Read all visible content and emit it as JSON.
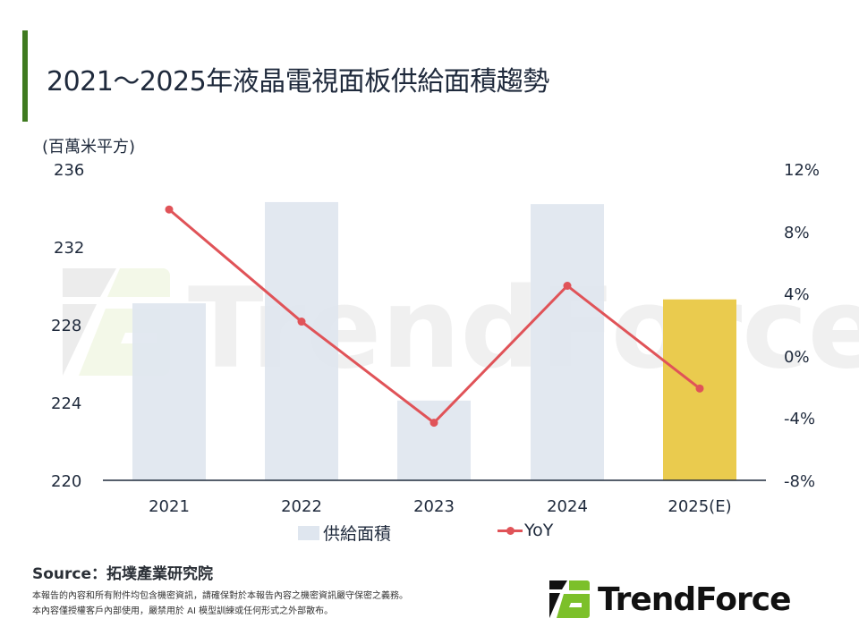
{
  "header": {
    "title": "2021～2025年液晶電視面板供給面積趨勢",
    "accent_color": "#3f7a1f"
  },
  "chart": {
    "unit_label": "(百萬米平方)",
    "left_axis_ticks": [
      "236",
      "232",
      "228",
      "224",
      "220"
    ],
    "right_axis_ticks": [
      "12%",
      "8%",
      "4%",
      "0%",
      "-4%",
      "-8%"
    ],
    "categories": [
      "2021",
      "2022",
      "2023",
      "2024",
      "2025(E)"
    ],
    "legend": {
      "bar_label": "供給面積",
      "line_label": "YoY"
    },
    "watermark": "TrendForce"
  },
  "chart_data": {
    "type": "bar",
    "title": "2021～2025年液晶電視面板供給面積趨勢",
    "xlabel": "",
    "ylabel": "(百萬米平方)",
    "y2label": "YoY",
    "categories": [
      "2021",
      "2022",
      "2023",
      "2024",
      "2025(E)"
    ],
    "series": [
      {
        "name": "供給面積",
        "type": "bar",
        "axis": "left",
        "values": [
          229.1,
          234.3,
          224.1,
          234.2,
          229.3
        ],
        "colors": [
          "#dfe6ef",
          "#dfe6ef",
          "#dfe6ef",
          "#dfe6ef",
          "#e9c845"
        ]
      },
      {
        "name": "YoY",
        "type": "line",
        "axis": "right",
        "unit": "%",
        "values": [
          9.4,
          2.2,
          -4.3,
          4.5,
          -2.1
        ],
        "color": "#e05358"
      }
    ],
    "ylim": [
      220,
      236
    ],
    "yticks": [
      220,
      224,
      228,
      232,
      236
    ],
    "y2lim": [
      -8,
      12
    ],
    "y2ticks": [
      -8,
      -4,
      0,
      4,
      8,
      12
    ],
    "grid": false,
    "legend_position": "bottom"
  },
  "footer": {
    "source": "Source：拓墣產業研究院",
    "disclaimer_line1": "本報告的內容和所有附件均包含機密資訊，請確保對於本報告內容之機密資訊嚴守保密之義務。",
    "disclaimer_line2": "本內容僅授權客戶內部使用，嚴禁用於 AI 模型訓練或任何形式之外部散布。",
    "logo_text": "TrendForce"
  }
}
